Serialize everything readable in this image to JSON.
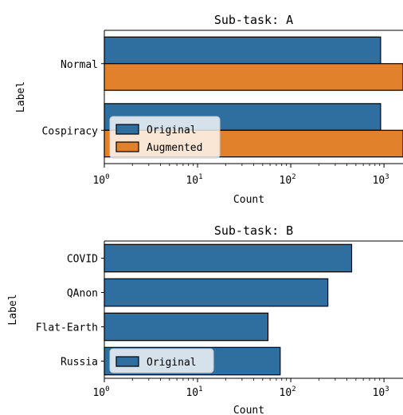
{
  "chart_data": [
    {
      "type": "bar",
      "orientation": "horizontal",
      "title": "Sub-task: A",
      "xlabel": "Count",
      "ylabel": "Label",
      "xscale": "log",
      "xlim": [
        1,
        1600
      ],
      "xticks": [
        {
          "base": "10",
          "exp": "0"
        },
        {
          "base": "10",
          "exp": "1"
        },
        {
          "base": "10",
          "exp": "2"
        },
        {
          "base": "10",
          "exp": "3"
        }
      ],
      "categories": [
        "Normal",
        "Cospiracy"
      ],
      "series": [
        {
          "name": "Original",
          "color": "#2f6f9f",
          "values": [
            920,
            920
          ]
        },
        {
          "name": "Augmented",
          "color": "#e1812c",
          "values": [
            1600,
            1600
          ]
        }
      ],
      "legend": "lower-left"
    },
    {
      "type": "bar",
      "orientation": "horizontal",
      "title": "Sub-task: B",
      "xlabel": "Count",
      "ylabel": "Label",
      "xscale": "log",
      "xlim": [
        1,
        1600
      ],
      "xticks": [
        {
          "base": "10",
          "exp": "0"
        },
        {
          "base": "10",
          "exp": "1"
        },
        {
          "base": "10",
          "exp": "2"
        },
        {
          "base": "10",
          "exp": "3"
        }
      ],
      "categories": [
        "COVID",
        "QAnon",
        "Flat-Earth",
        "Russia"
      ],
      "series": [
        {
          "name": "Original",
          "color": "#2f6f9f",
          "values": [
            450,
            250,
            57,
            77
          ]
        }
      ],
      "legend": "lower-left"
    }
  ]
}
